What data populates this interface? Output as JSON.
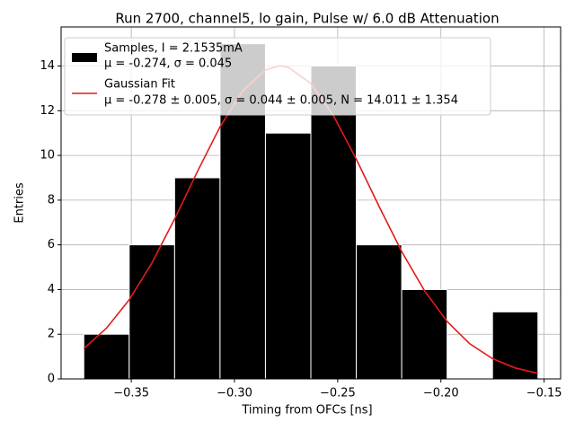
{
  "chart_data": {
    "type": "histogram",
    "title": "Run 2700, channel5, lo gain, Pulse w/ 6.0 dB Attenuation",
    "xlabel": "Timing from OFCs [ns]",
    "ylabel": "Entries",
    "bins": [
      -0.373,
      -0.351,
      -0.329,
      -0.307,
      -0.285,
      -0.263,
      -0.241,
      -0.219,
      -0.197,
      -0.175,
      -0.153
    ],
    "series": [
      {
        "name": "Samples, I = 2.1535mA",
        "detail": "μ = -0.274, σ = 0.045",
        "color": "#000000",
        "edgecolor": "#ffffff",
        "values": [
          2,
          6,
          9,
          15,
          11,
          14,
          6,
          4,
          0,
          3
        ]
      },
      {
        "name": "Gaussian Fit",
        "detail": "μ = -0.278 ± 0.005, σ = 0.044 ± 0.005, N = 14.011 ± 1.354",
        "color": "#e41a1c",
        "x": [
          -0.373,
          -0.362,
          -0.351,
          -0.34,
          -0.329,
          -0.318,
          -0.307,
          -0.296,
          -0.285,
          -0.278,
          -0.274,
          -0.263,
          -0.252,
          -0.241,
          -0.23,
          -0.219,
          -0.208,
          -0.197,
          -0.186,
          -0.175,
          -0.164,
          -0.153
        ],
        "values": [
          1.36,
          2.27,
          3.54,
          5.19,
          7.16,
          9.27,
          11.28,
          12.89,
          13.83,
          14.01,
          13.95,
          13.22,
          11.77,
          9.84,
          7.73,
          5.7,
          3.95,
          2.57,
          1.57,
          0.91,
          0.49,
          0.25
        ]
      }
    ],
    "xlim": [
      -0.384,
      -0.142
    ],
    "ylim": [
      0,
      15.75
    ],
    "xticks": [
      {
        "value": -0.35,
        "label": "−0.35"
      },
      {
        "value": -0.3,
        "label": "−0.30"
      },
      {
        "value": -0.25,
        "label": "−0.25"
      },
      {
        "value": -0.2,
        "label": "−0.20"
      },
      {
        "value": -0.15,
        "label": "−0.15"
      }
    ],
    "yticks": [
      0,
      2,
      4,
      6,
      8,
      10,
      12,
      14
    ],
    "grid": true,
    "legend": "upper left"
  }
}
